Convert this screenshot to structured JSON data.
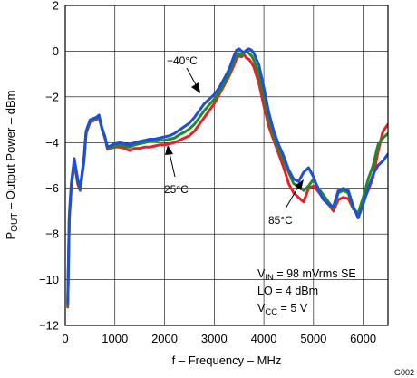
{
  "chart_data": {
    "type": "line",
    "title": "",
    "xlabel": "f – Frequency – MHz",
    "ylabel": {
      "prefix": "P",
      "sub": "OUT",
      "rest": " – Output Power – dBm"
    },
    "xlim": [
      0,
      6500
    ],
    "ylim": [
      -12,
      2
    ],
    "x_ticks": [
      0,
      1000,
      2000,
      3000,
      4000,
      5000,
      6000
    ],
    "y_ticks": [
      2,
      0,
      -2,
      -4,
      -6,
      -8,
      -10,
      -12
    ],
    "x_tick_labels": [
      "0",
      "1000",
      "2000",
      "3000",
      "4000",
      "5000",
      "6000"
    ],
    "y_tick_labels": [
      "2",
      "0",
      "−2",
      "−4",
      "−6",
      "−8",
      "−10",
      "−12"
    ],
    "grid": true,
    "series": [
      {
        "name": "85°C",
        "color": "#e8202a",
        "x": [
          50,
          80,
          120,
          180,
          250,
          300,
          380,
          420,
          500,
          560,
          620,
          680,
          740,
          800,
          850,
          900,
          1000,
          1100,
          1200,
          1300,
          1400,
          1500,
          1600,
          1700,
          1800,
          1900,
          2000,
          2100,
          2200,
          2300,
          2400,
          2500,
          2600,
          2700,
          2800,
          2900,
          3000,
          3100,
          3200,
          3300,
          3400,
          3450,
          3500,
          3550,
          3600,
          3650,
          3700,
          3750,
          3800,
          3900,
          4000,
          4100,
          4200,
          4300,
          4400,
          4500,
          4600,
          4700,
          4800,
          4900,
          5000,
          5100,
          5200,
          5300,
          5400,
          5500,
          5600,
          5700,
          5800,
          5900,
          6000,
          6100,
          6200,
          6300,
          6400,
          6500
        ],
        "y": [
          -11.2,
          -7.4,
          -6,
          -4.9,
          -5.8,
          -6.1,
          -4.8,
          -3.6,
          -3.1,
          -3.05,
          -3.0,
          -2.9,
          -3.4,
          -3.8,
          -4.3,
          -4.25,
          -4.2,
          -4.2,
          -4.25,
          -4.35,
          -4.25,
          -4.25,
          -4.2,
          -4.2,
          -4.15,
          -4.1,
          -4.1,
          -4.05,
          -4.0,
          -3.9,
          -3.8,
          -3.7,
          -3.5,
          -3.2,
          -2.9,
          -2.6,
          -2.3,
          -1.9,
          -1.5,
          -1.1,
          -0.6,
          -0.3,
          -0.2,
          -0.25,
          -0.15,
          -0.3,
          -0.35,
          -0.5,
          -0.7,
          -1.4,
          -2.4,
          -3.3,
          -3.9,
          -4.5,
          -5.1,
          -5.8,
          -6.2,
          -6.4,
          -6.6,
          -6.0,
          -5.9,
          -6.15,
          -6.45,
          -6.7,
          -7.0,
          -6.5,
          -6.4,
          -6.45,
          -6.9,
          -7.1,
          -6.6,
          -6.1,
          -5.5,
          -4.4,
          -3.5,
          -3.2
        ]
      },
      {
        "name": "25°C",
        "color": "#1f8a2a",
        "x": [
          50,
          80,
          120,
          180,
          250,
          300,
          380,
          420,
          500,
          560,
          620,
          680,
          740,
          800,
          850,
          900,
          1000,
          1100,
          1200,
          1300,
          1400,
          1500,
          1600,
          1700,
          1800,
          1900,
          2000,
          2100,
          2200,
          2300,
          2400,
          2500,
          2600,
          2700,
          2800,
          2900,
          3000,
          3100,
          3200,
          3300,
          3400,
          3450,
          3500,
          3550,
          3600,
          3650,
          3700,
          3750,
          3800,
          3900,
          4000,
          4100,
          4200,
          4300,
          4400,
          4500,
          4600,
          4700,
          4800,
          4900,
          5000,
          5100,
          5200,
          5300,
          5400,
          5500,
          5600,
          5700,
          5800,
          5900,
          6000,
          6100,
          6200,
          6300,
          6400,
          6500
        ],
        "y": [
          -11.1,
          -7.3,
          -5.9,
          -4.8,
          -5.7,
          -6.05,
          -4.7,
          -3.55,
          -3.05,
          -3.0,
          -2.95,
          -2.85,
          -3.4,
          -3.8,
          -4.25,
          -4.2,
          -4.15,
          -4.1,
          -4.15,
          -4.2,
          -4.1,
          -4.05,
          -4.0,
          -3.95,
          -3.95,
          -3.9,
          -3.9,
          -3.85,
          -3.8,
          -3.65,
          -3.55,
          -3.4,
          -3.2,
          -2.9,
          -2.6,
          -2.35,
          -2.1,
          -1.8,
          -1.4,
          -1.0,
          -0.4,
          -0.15,
          -0.1,
          -0.2,
          -0.05,
          0.0,
          -0.1,
          -0.2,
          -0.4,
          -1.0,
          -2.0,
          -3.0,
          -3.7,
          -4.3,
          -4.8,
          -5.3,
          -5.8,
          -5.9,
          -6.1,
          -5.9,
          -5.6,
          -6.0,
          -6.3,
          -6.6,
          -6.9,
          -6.2,
          -6.1,
          -6.2,
          -6.9,
          -7.1,
          -6.4,
          -5.6,
          -5.0,
          -4.1,
          -3.8,
          -3.6
        ]
      },
      {
        "name": "−40°C",
        "color": "#1d4fd8",
        "x": [
          50,
          80,
          120,
          180,
          250,
          300,
          380,
          420,
          500,
          560,
          620,
          680,
          740,
          800,
          850,
          900,
          1000,
          1100,
          1200,
          1300,
          1400,
          1500,
          1600,
          1700,
          1800,
          1900,
          2000,
          2100,
          2200,
          2300,
          2400,
          2500,
          2600,
          2700,
          2800,
          2900,
          3000,
          3100,
          3200,
          3300,
          3400,
          3450,
          3500,
          3550,
          3600,
          3650,
          3700,
          3750,
          3800,
          3900,
          4000,
          4100,
          4200,
          4300,
          4400,
          4500,
          4600,
          4700,
          4800,
          4900,
          5000,
          5100,
          5200,
          5300,
          5400,
          5500,
          5600,
          5700,
          5800,
          5900,
          6000,
          6100,
          6200,
          6300,
          6400,
          6500
        ],
        "y": [
          -11.0,
          -7.2,
          -5.8,
          -4.7,
          -5.6,
          -6.0,
          -4.6,
          -3.5,
          -3.0,
          -2.95,
          -2.9,
          -2.8,
          -3.35,
          -3.75,
          -4.2,
          -4.15,
          -4.05,
          -4.0,
          -4.05,
          -4.1,
          -4.0,
          -3.95,
          -3.9,
          -3.85,
          -3.85,
          -3.8,
          -3.75,
          -3.7,
          -3.6,
          -3.45,
          -3.3,
          -3.15,
          -2.9,
          -2.6,
          -2.3,
          -2.1,
          -1.9,
          -1.6,
          -1.2,
          -0.8,
          -0.2,
          0.05,
          0.1,
          0.0,
          -0.05,
          0.05,
          0.1,
          0.05,
          -0.1,
          -0.6,
          -1.6,
          -2.7,
          -3.5,
          -4.1,
          -4.6,
          -5.2,
          -5.6,
          -5.7,
          -5.3,
          -5.1,
          -5.5,
          -6.1,
          -6.5,
          -6.7,
          -6.8,
          -6.1,
          -6.0,
          -6.1,
          -6.8,
          -7.3,
          -6.7,
          -6.0,
          -5.4,
          -5.0,
          -4.8,
          -4.5
        ]
      }
    ],
    "annotations": [
      {
        "text": "−40°C",
        "series": "−40°C"
      },
      {
        "text": "25°C",
        "series": "25°C"
      },
      {
        "text": "85°C",
        "series": "85°C"
      }
    ],
    "conditions": [
      {
        "prefix": "V",
        "sub": "IN",
        "rest": " = 98 mVrms SE"
      },
      {
        "prefix": "LO = 4 dBm",
        "sub": "",
        "rest": ""
      },
      {
        "prefix": "V",
        "sub": "CC",
        "rest": " = 5 V"
      }
    ],
    "figure_id": "G002"
  }
}
